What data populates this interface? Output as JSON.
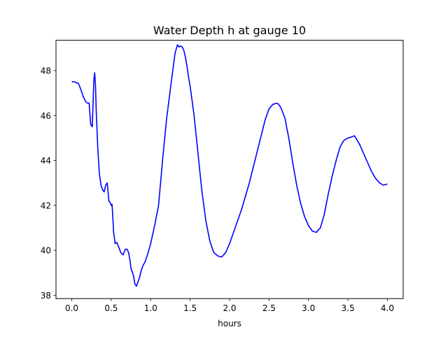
{
  "chart_data": {
    "type": "line",
    "title": "Water Depth h at gauge 10",
    "xlabel": "hours",
    "ylabel": "",
    "xlim": [
      -0.2,
      4.2
    ],
    "ylim": [
      37.85,
      49.35
    ],
    "xticks": [
      0.0,
      0.5,
      1.0,
      1.5,
      2.0,
      2.5,
      3.0,
      3.5,
      4.0
    ],
    "xtick_labels": [
      "0.0",
      "0.5",
      "1.0",
      "1.5",
      "2.0",
      "2.5",
      "3.0",
      "3.5",
      "4.0"
    ],
    "yticks": [
      38,
      40,
      42,
      44,
      46,
      48
    ],
    "ytick_labels": [
      "38",
      "40",
      "42",
      "44",
      "46",
      "48"
    ],
    "grid": false,
    "color": "#0000ff",
    "series": [
      {
        "x": [
          0.0,
          0.04,
          0.06,
          0.08,
          0.1,
          0.12,
          0.15,
          0.18,
          0.2,
          0.22,
          0.24,
          0.26,
          0.28,
          0.29,
          0.3,
          0.31,
          0.33,
          0.35,
          0.37,
          0.39,
          0.41,
          0.43,
          0.45,
          0.47,
          0.49,
          0.5,
          0.51,
          0.52,
          0.53,
          0.55,
          0.57,
          0.6,
          0.62,
          0.65,
          0.68,
          0.7,
          0.72,
          0.74,
          0.75,
          0.78,
          0.8,
          0.82,
          0.84,
          0.86,
          0.88,
          0.9,
          0.93,
          0.96,
          1.0,
          1.05,
          1.1,
          1.15,
          1.2,
          1.25,
          1.28,
          1.31,
          1.34,
          1.36,
          1.38,
          1.4,
          1.42,
          1.44,
          1.46,
          1.48,
          1.5,
          1.55,
          1.6,
          1.65,
          1.7,
          1.75,
          1.8,
          1.85,
          1.9,
          1.95,
          2.0,
          2.05,
          2.1,
          2.15,
          2.2,
          2.25,
          2.3,
          2.35,
          2.4,
          2.45,
          2.5,
          2.55,
          2.6,
          2.62,
          2.65,
          2.7,
          2.75,
          2.8,
          2.85,
          2.9,
          2.95,
          3.0,
          3.05,
          3.1,
          3.15,
          3.2,
          3.25,
          3.3,
          3.35,
          3.4,
          3.45,
          3.5,
          3.55,
          3.58,
          3.6,
          3.65,
          3.7,
          3.75,
          3.8,
          3.85,
          3.9,
          3.95,
          4.0
        ],
        "y": [
          47.5,
          47.5,
          47.45,
          47.45,
          47.3,
          47.1,
          46.8,
          46.6,
          46.55,
          46.55,
          45.6,
          45.5,
          47.6,
          47.9,
          47.4,
          46.2,
          44.5,
          43.4,
          42.9,
          42.7,
          42.6,
          42.9,
          43.0,
          42.2,
          42.1,
          42.0,
          42.05,
          41.5,
          40.8,
          40.3,
          40.35,
          40.1,
          39.9,
          39.8,
          40.05,
          40.05,
          39.9,
          39.5,
          39.2,
          38.9,
          38.5,
          38.4,
          38.6,
          38.8,
          39.1,
          39.3,
          39.5,
          39.8,
          40.3,
          41.1,
          42.0,
          44.0,
          45.8,
          47.2,
          48.0,
          48.8,
          49.15,
          49.05,
          49.1,
          49.05,
          48.9,
          48.6,
          48.2,
          47.7,
          47.3,
          46.0,
          44.3,
          42.6,
          41.3,
          40.4,
          39.9,
          39.75,
          39.7,
          39.9,
          40.3,
          40.8,
          41.3,
          41.8,
          42.4,
          43.0,
          43.7,
          44.4,
          45.1,
          45.8,
          46.3,
          46.5,
          46.55,
          46.5,
          46.35,
          45.9,
          45.0,
          43.9,
          42.9,
          42.1,
          41.5,
          41.1,
          40.85,
          40.8,
          41.0,
          41.6,
          42.5,
          43.3,
          44.0,
          44.6,
          44.9,
          45.0,
          45.05,
          45.1,
          45.0,
          44.7,
          44.3,
          43.9,
          43.5,
          43.2,
          43.0,
          42.9,
          42.95
        ]
      }
    ]
  }
}
